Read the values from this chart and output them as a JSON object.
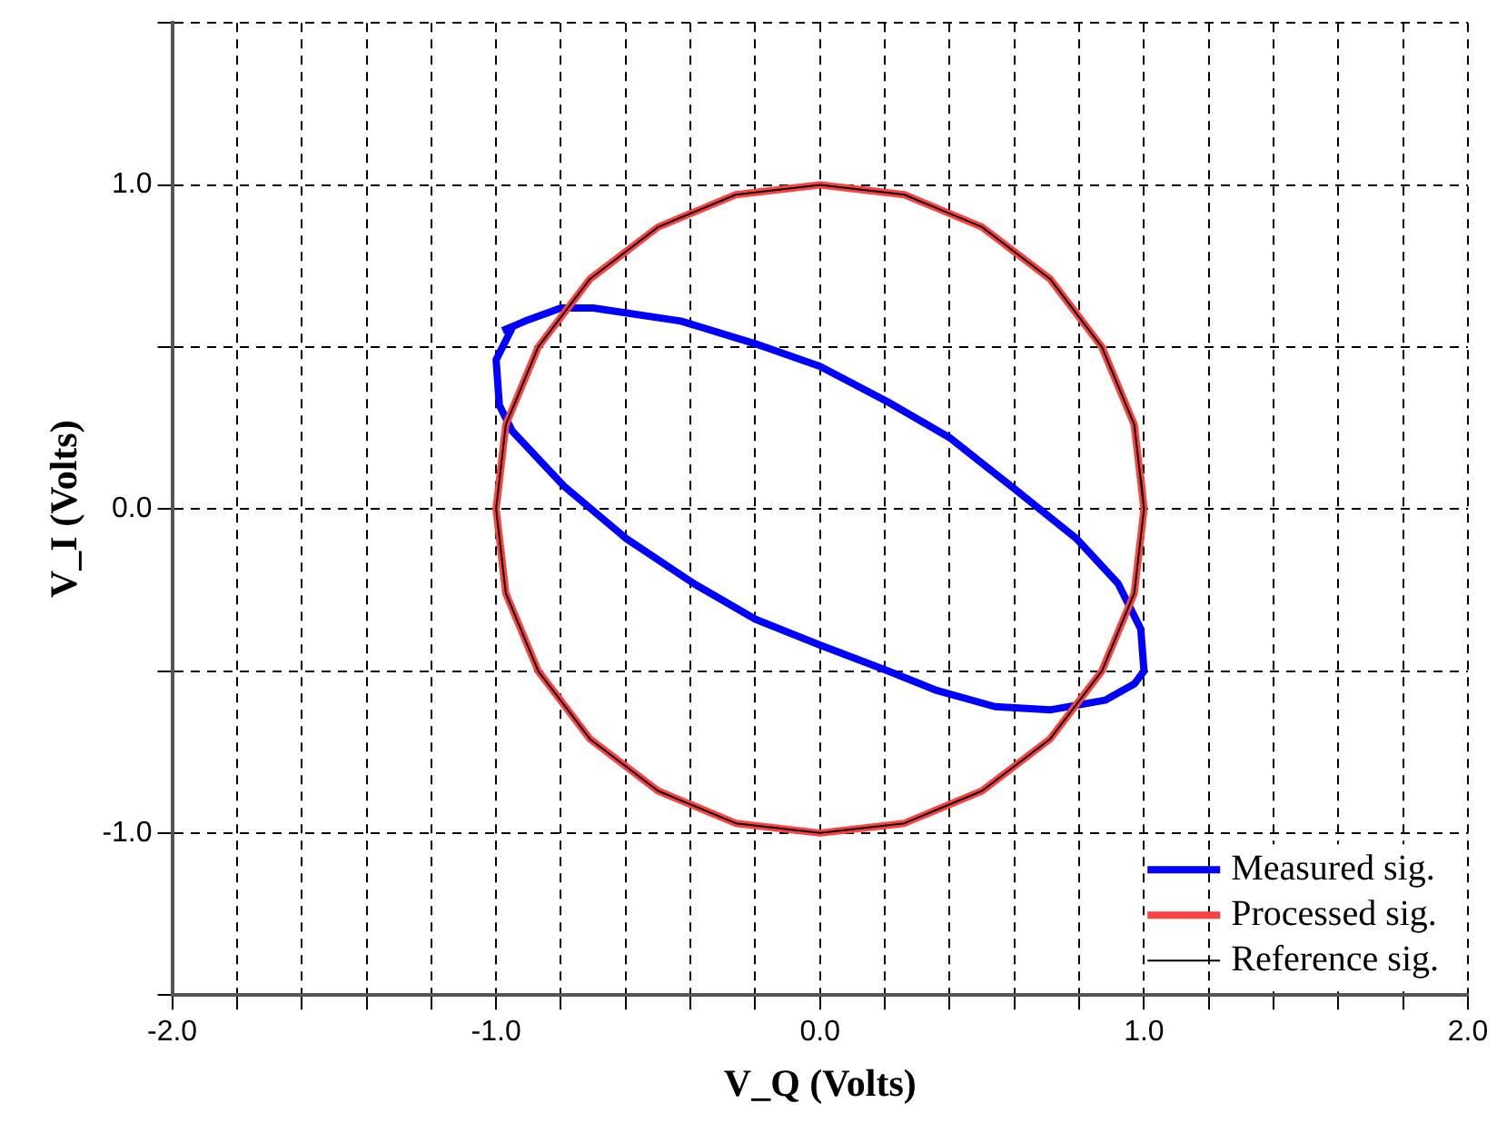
{
  "chart_data": {
    "type": "line",
    "xlabel": "V_Q (Volts)",
    "ylabel": "V_I (Volts)",
    "marker": "none",
    "grid": true,
    "legend": "bottom right",
    "xlim": [
      -2,
      2
    ],
    "ylim": [
      -1.5,
      1.5
    ],
    "xticks": [
      {
        "value": -2,
        "label": "-2.0"
      },
      {
        "value": -1.8,
        "label": null
      },
      {
        "value": -1.6,
        "label": null
      },
      {
        "value": -1.4,
        "label": null
      },
      {
        "value": -1.2,
        "label": null
      },
      {
        "value": -1,
        "label": "-1.0"
      },
      {
        "value": -0.8,
        "label": null
      },
      {
        "value": -0.6,
        "label": null
      },
      {
        "value": -0.4,
        "label": null
      },
      {
        "value": -0.2,
        "label": null
      },
      {
        "value": 0,
        "label": "0.0"
      },
      {
        "value": 0.2,
        "label": null
      },
      {
        "value": 0.4,
        "label": null
      },
      {
        "value": 0.6,
        "label": null
      },
      {
        "value": 0.8,
        "label": null
      },
      {
        "value": 1,
        "label": "1.0"
      },
      {
        "value": 1.2,
        "label": null
      },
      {
        "value": 1.4,
        "label": null
      },
      {
        "value": 1.6,
        "label": null
      },
      {
        "value": 1.8,
        "label": null
      },
      {
        "value": 2,
        "label": "2.0"
      }
    ],
    "yticks": [
      {
        "value": -1.5,
        "label": null
      },
      {
        "value": -1,
        "label": "-1.0"
      },
      {
        "value": -0.5,
        "label": null
      },
      {
        "value": 0,
        "label": "0.0"
      },
      {
        "value": 0.5,
        "label": null
      },
      {
        "value": 1,
        "label": "1.0"
      },
      {
        "value": 1.5,
        "label": null
      }
    ],
    "series": [
      {
        "name": "Measured sig.",
        "color": "#0000ff",
        "x": [
          -0.98,
          -0.91,
          -0.8,
          -0.7,
          -0.43,
          -0.2,
          0,
          0.21,
          0.4,
          0.59,
          0.79,
          0.92,
          0.99,
          1,
          0.97,
          0.88,
          0.71,
          0.54,
          0.36,
          0.21,
          0,
          -0.2,
          -0.39,
          -0.6,
          -0.79,
          -0.95,
          -0.99,
          -1,
          -0.95
        ],
        "values": [
          0.55,
          0.58,
          0.62,
          0.62,
          0.58,
          0.51,
          0.44,
          0.33,
          0.22,
          0.07,
          -0.09,
          -0.23,
          -0.37,
          -0.5,
          -0.54,
          -0.59,
          -0.62,
          -0.61,
          -0.56,
          -0.5,
          -0.42,
          -0.34,
          -0.23,
          -0.09,
          0.07,
          0.24,
          0.32,
          0.46,
          0.56
        ]
      },
      {
        "name": "Processed sig.",
        "color": "#ff4040",
        "x": [
          1,
          0.97,
          0.87,
          0.71,
          0.5,
          0.26,
          0,
          -0.26,
          -0.5,
          -0.71,
          -0.87,
          -0.97,
          -1,
          -0.97,
          -0.87,
          -0.71,
          -0.5,
          -0.26,
          0,
          0.26,
          0.5,
          0.71,
          0.87,
          0.97,
          1,
          0.99
        ],
        "values": [
          0,
          0.26,
          0.5,
          0.71,
          0.87,
          0.97,
          1,
          0.97,
          0.87,
          0.71,
          0.5,
          0.26,
          0,
          -0.26,
          -0.5,
          -0.71,
          -0.87,
          -0.97,
          -1,
          -0.97,
          -0.87,
          -0.71,
          -0.5,
          -0.26,
          0,
          0.1
        ]
      },
      {
        "name": "Reference sig.",
        "color": "#000000",
        "x": [
          1,
          0.97,
          0.87,
          0.71,
          0.5,
          0.26,
          0,
          -0.26,
          -0.5,
          -0.71,
          -0.87,
          -0.97,
          -1,
          -0.97,
          -0.87,
          -0.71,
          -0.5,
          -0.26,
          0,
          0.26,
          0.5,
          0.71,
          0.87,
          0.97,
          1,
          0.99
        ],
        "values": [
          0,
          0.26,
          0.5,
          0.71,
          0.87,
          0.97,
          1,
          0.97,
          0.87,
          0.71,
          0.5,
          0.26,
          0,
          -0.26,
          -0.5,
          -0.71,
          -0.87,
          -0.97,
          -1,
          -0.97,
          -0.87,
          -0.71,
          -0.5,
          -0.26,
          0,
          0.1
        ]
      }
    ]
  }
}
